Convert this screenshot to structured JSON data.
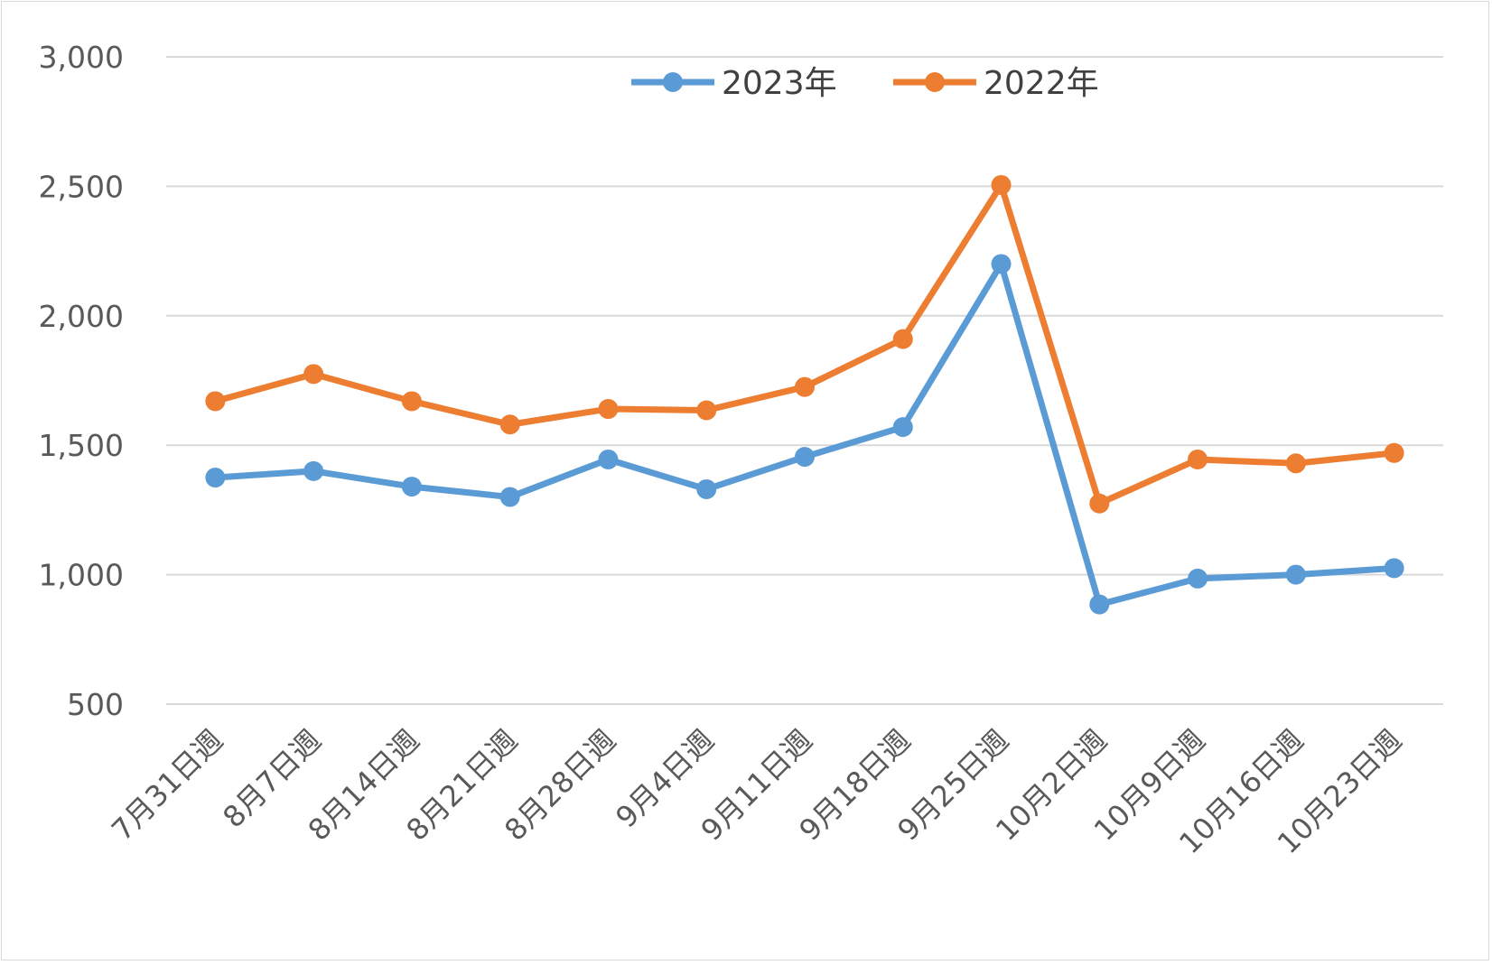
{
  "chart_data": {
    "type": "line",
    "categories": [
      "7月31日週",
      "8月7日週",
      "8月14日週",
      "8月21日週",
      "8月28日週",
      "9月4日週",
      "9月11日週",
      "9月18日週",
      "9月25日週",
      "10月2日週",
      "10月9日週",
      "10月16日週",
      "10月23日週"
    ],
    "series": [
      {
        "name": "2023年",
        "color": "#5b9bd5",
        "values": [
          1375,
          1400,
          1340,
          1300,
          1445,
          1330,
          1455,
          1570,
          2200,
          885,
          985,
          1000,
          1025
        ]
      },
      {
        "name": "2022年",
        "color": "#ed7d31",
        "values": [
          1670,
          1775,
          1670,
          1580,
          1640,
          1635,
          1725,
          1910,
          2505,
          1275,
          1445,
          1430,
          1470
        ]
      }
    ],
    "yticks": [
      "500",
      "1,000",
      "1,500",
      "2,000",
      "2,500",
      "3,000"
    ],
    "ylim": [
      500,
      3000
    ],
    "grid": true,
    "legend_position": "top-center"
  }
}
